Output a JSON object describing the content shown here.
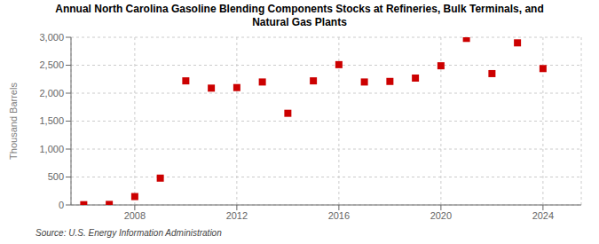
{
  "chart_data": {
    "type": "scatter",
    "title": "Annual North Carolina Gasoline Blending Components Stocks at Refineries, Bulk Terminals, and\nNatural Gas Plants",
    "ylabel": "Thousand Barrels",
    "annotations": [
      "Source: U.S. Energy Information Administration"
    ],
    "x": [
      2006,
      2007,
      2008,
      2009,
      2010,
      2011,
      2012,
      2013,
      2014,
      2015,
      2016,
      2017,
      2018,
      2019,
      2020,
      2021,
      2022,
      2023,
      2024
    ],
    "values": [
      5,
      10,
      150,
      480,
      2220,
      2090,
      2100,
      2200,
      1640,
      2220,
      2510,
      2200,
      2210,
      2270,
      2490,
      2980,
      2350,
      2900,
      2440
    ],
    "color": "#cc0000",
    "marker": "square",
    "xlim": [
      2005.5,
      2025.5
    ],
    "xticks": [
      2008,
      2012,
      2016,
      2020,
      2024
    ],
    "ylim": [
      0,
      3000
    ],
    "yticks": [
      0,
      500,
      {
        "value": 1000,
        "label": "1,000"
      },
      {
        "value": 1500,
        "label": "1,500"
      },
      {
        "value": 2000,
        "label": "2,000"
      },
      {
        "value": 2500,
        "label": "2,500"
      },
      {
        "value": 3000,
        "label": "3,000"
      }
    ],
    "grid": true
  }
}
